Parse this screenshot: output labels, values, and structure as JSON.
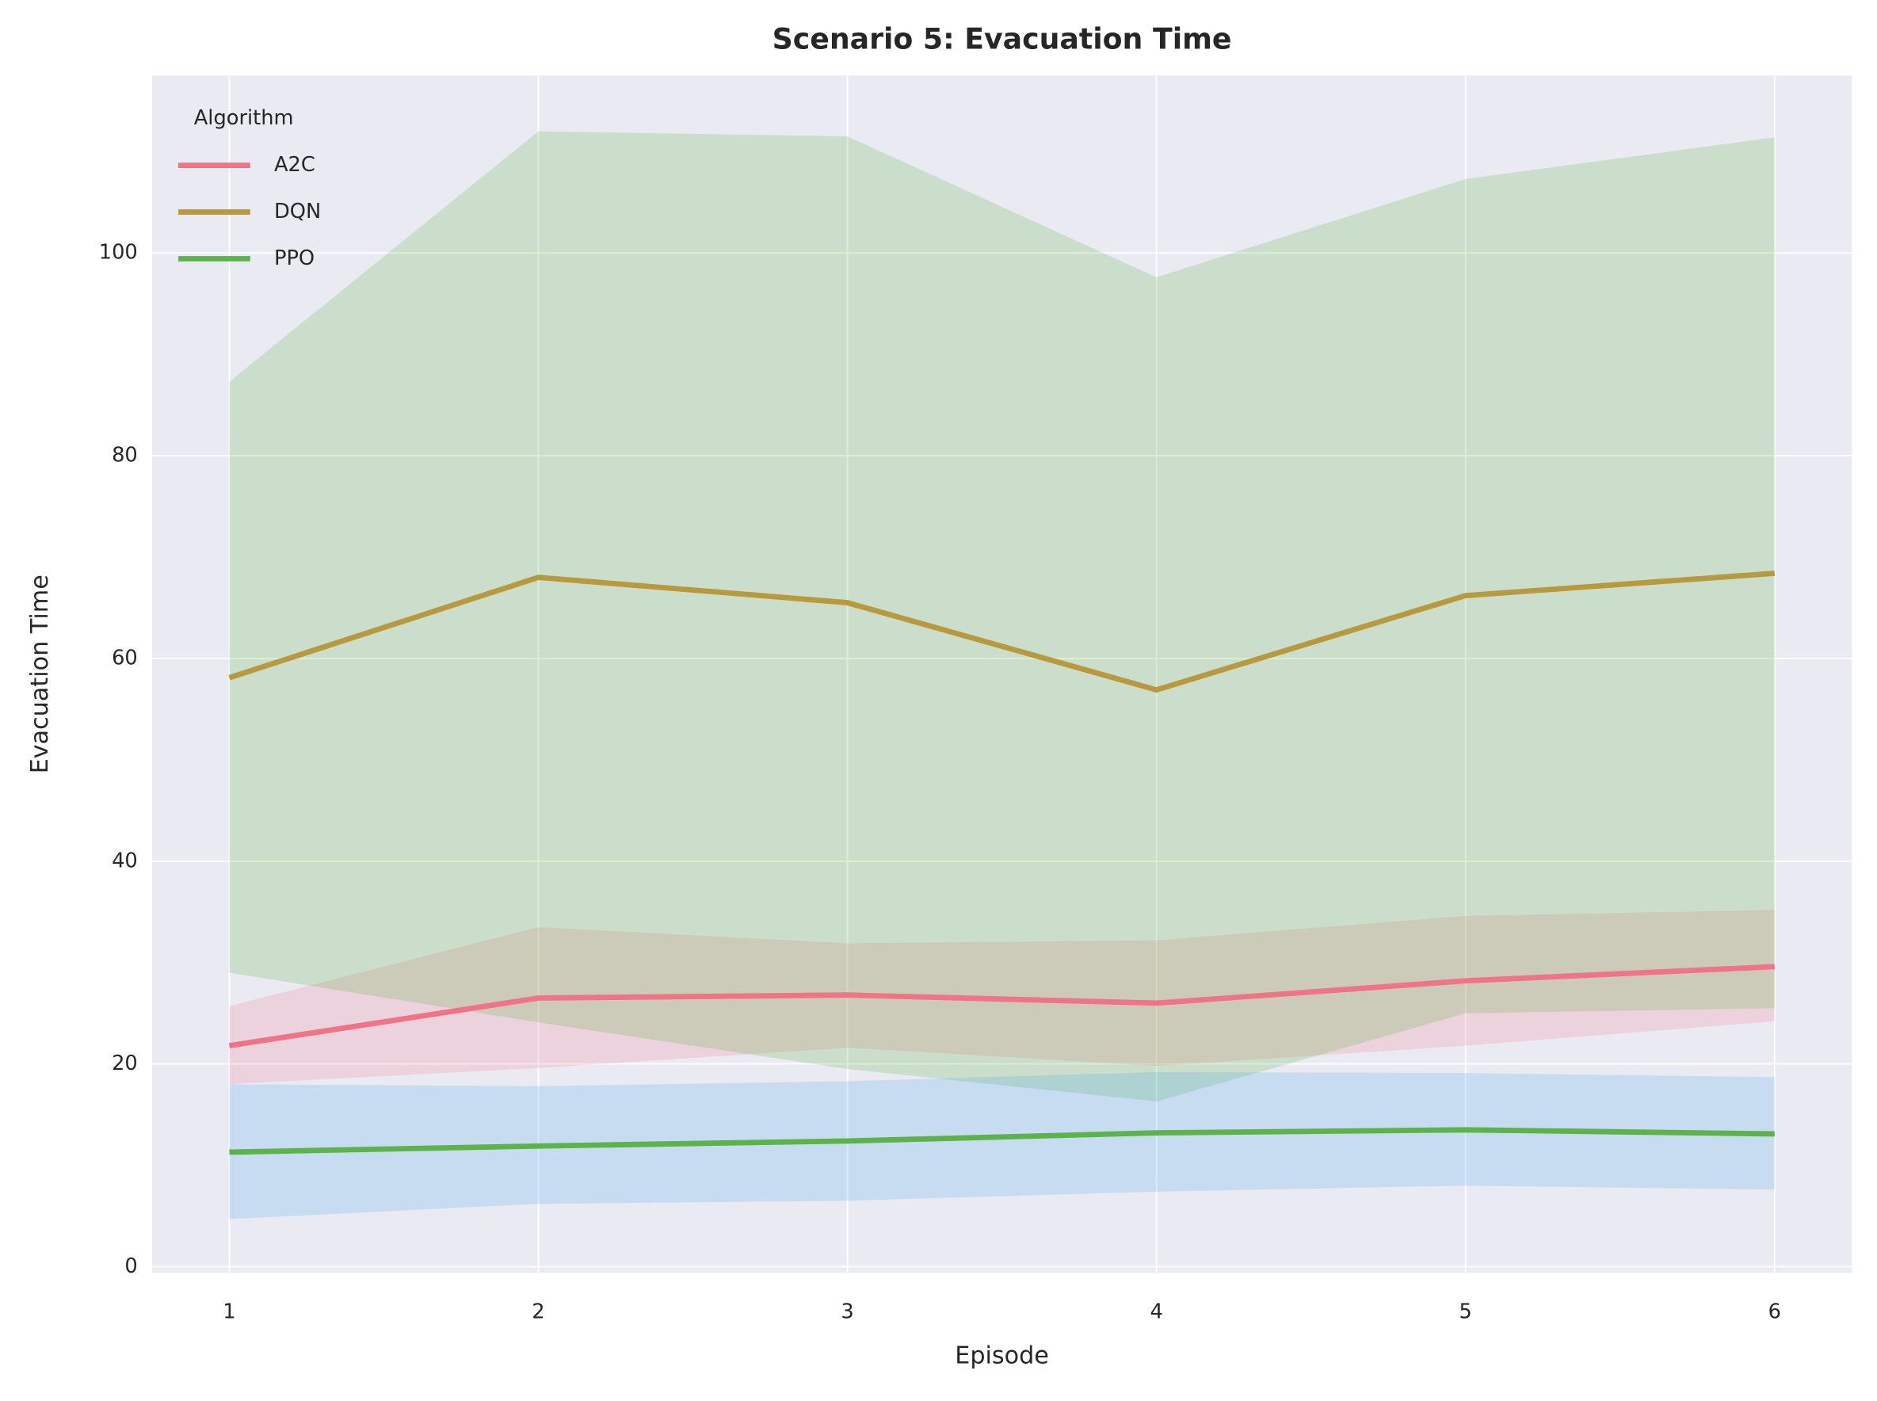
{
  "chart_data": {
    "type": "line",
    "title": "Scenario 5: Evacuation Time",
    "x_label": "Episode",
    "y_label": "Evacuation Time",
    "x": [
      1,
      2,
      3,
      4,
      5,
      6
    ],
    "xlim": [
      0.75,
      6.25
    ],
    "xticks": [
      1,
      2,
      3,
      4,
      5,
      6
    ],
    "ylim": [
      -0.6,
      117.5
    ],
    "yticks": [
      0,
      20,
      40,
      60,
      80,
      100
    ],
    "grid": true,
    "legend_title": "Algorithm",
    "legend_loc": "upper left",
    "series": [
      {
        "name": "A2C",
        "color": "#f07488",
        "values": [
          21.8,
          26.5,
          26.8,
          26.0,
          28.2,
          29.6
        ],
        "band_color": "#f77189",
        "band_lower": [
          18.0,
          19.6,
          21.6,
          19.8,
          21.8,
          24.2
        ],
        "band_upper": [
          25.7,
          33.5,
          31.9,
          32.2,
          34.6,
          35.2
        ]
      },
      {
        "name": "DQN",
        "color": "#b8993e",
        "values": [
          58.1,
          68.0,
          65.5,
          56.9,
          66.2,
          68.4
        ],
        "band_color": "#50b131",
        "band_lower": [
          29.0,
          24.1,
          19.5,
          16.3,
          25.0,
          25.5
        ],
        "band_upper": [
          87.3,
          112.0,
          111.5,
          97.6,
          107.3,
          111.4
        ]
      },
      {
        "name": "PPO",
        "color": "#5bb34a",
        "values": [
          11.3,
          11.9,
          12.4,
          13.2,
          13.5,
          13.1
        ],
        "band_color": "#3ba3ec",
        "band_lower": [
          4.7,
          6.2,
          6.5,
          7.4,
          8.0,
          7.6
        ],
        "band_upper": [
          18.0,
          17.8,
          18.3,
          19.2,
          19.1,
          18.7
        ]
      }
    ]
  }
}
